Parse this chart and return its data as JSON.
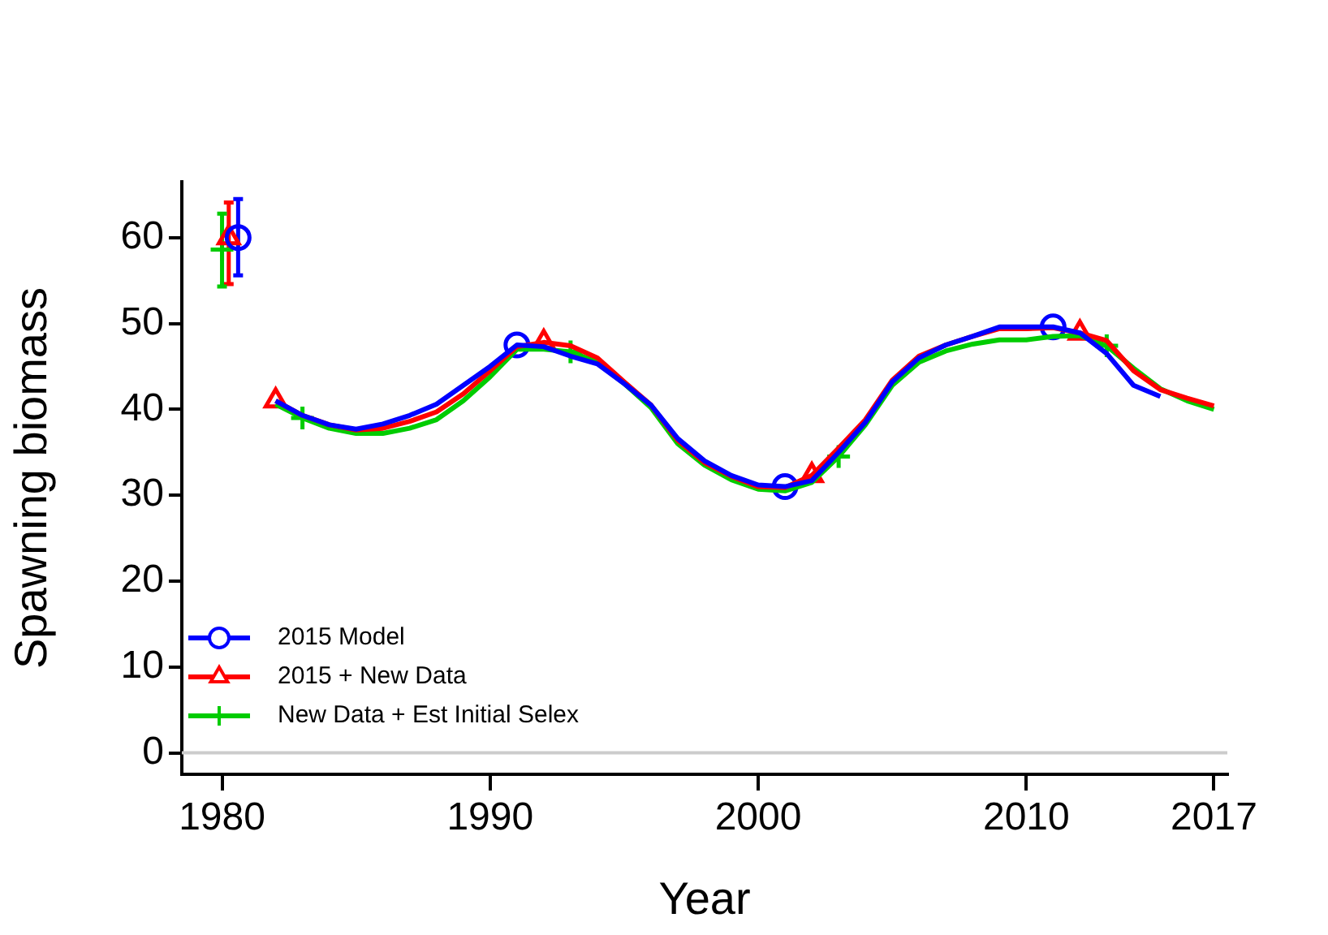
{
  "chart_data": {
    "type": "line",
    "xlabel": "Year",
    "ylabel": "Spawning biomass",
    "x": [
      1982,
      1983,
      1984,
      1985,
      1986,
      1987,
      1988,
      1989,
      1990,
      1991,
      1992,
      1993,
      1994,
      1995,
      1996,
      1997,
      1998,
      1999,
      2000,
      2001,
      2002,
      2003,
      2004,
      2005,
      2006,
      2007,
      2008,
      2009,
      2010,
      2011,
      2012,
      2013,
      2014,
      2015,
      2016,
      2017
    ],
    "series": [
      {
        "name": "2015 Model",
        "color": "#0000ff",
        "values": [
          41,
          39.3,
          38.2,
          37.7,
          38.3,
          39.3,
          40.6,
          42.8,
          45,
          47.5,
          47.3,
          46.2,
          45.3,
          43,
          40.5,
          36.6,
          34,
          32.3,
          31.2,
          31,
          31.7,
          35,
          38.5,
          43.2,
          46,
          47.5,
          48.5,
          49.6,
          49.6,
          49.6,
          48.9,
          46.5,
          42.8,
          41.5,
          null,
          null
        ]
      },
      {
        "name": "2015 + New Data",
        "color": "#ff0000",
        "values": [
          41,
          39.3,
          38.2,
          37.6,
          37.8,
          38.6,
          39.7,
          41.8,
          44.5,
          47.3,
          47.8,
          47.4,
          46,
          43.2,
          40.5,
          36.4,
          33.8,
          32.2,
          31,
          30.9,
          32.3,
          35.5,
          38.8,
          43.4,
          46.2,
          47.5,
          48.5,
          49.4,
          49.4,
          49.5,
          48.9,
          48,
          44.5,
          42.3,
          41.3,
          40.4
        ]
      },
      {
        "name": "New Data + Est Initial Selex",
        "color": "#00cc00",
        "values": [
          40.6,
          39,
          37.8,
          37.2,
          37.2,
          37.8,
          38.8,
          41,
          43.8,
          47,
          47,
          46.7,
          45.5,
          43,
          40.2,
          36,
          33.5,
          31.8,
          30.7,
          30.5,
          31.5,
          34.5,
          38.2,
          42.8,
          45.5,
          46.8,
          47.6,
          48.1,
          48.1,
          48.5,
          48.6,
          47.4,
          44.8,
          42.4,
          41,
          40
        ]
      },
      {
        "type": "scatter",
        "color": "#0000ff",
        "marker": "circle",
        "x": [
          1980.6,
          1991,
          2001,
          2011
        ],
        "values": [
          60,
          47.5,
          31,
          49.6
        ],
        "errors": [
          [
            55.6,
            64.5
          ],
          null,
          null,
          null
        ]
      },
      {
        "type": "scatter",
        "color": "#ff0000",
        "marker": "triangle",
        "x": [
          1980.25,
          1982,
          1992,
          2002,
          2012
        ],
        "values": [
          60,
          41,
          47.8,
          32.3,
          48.9
        ],
        "errors": [
          [
            54.6,
            64.1
          ],
          null,
          null,
          null,
          null
        ]
      },
      {
        "type": "scatter",
        "color": "#00cc00",
        "marker": "cross",
        "x": [
          1980,
          1983,
          1993,
          2003,
          2013
        ],
        "values": [
          58.6,
          39,
          46.7,
          34.5,
          47.4
        ],
        "errors": [
          [
            54.3,
            62.8
          ],
          null,
          null,
          null,
          null
        ]
      }
    ],
    "xlim": [
      1978.5,
      2017.5
    ],
    "xticks": [
      1980,
      1990,
      2000,
      2010,
      2017
    ],
    "ylim": [
      -2.5,
      66.5
    ],
    "yticks": [
      0,
      10,
      20,
      30,
      40,
      50,
      60
    ],
    "ref_lines": [
      {
        "axis": "y",
        "value": 0,
        "color": "#cccccc"
      }
    ],
    "legend": "bottom left",
    "grid": false
  }
}
